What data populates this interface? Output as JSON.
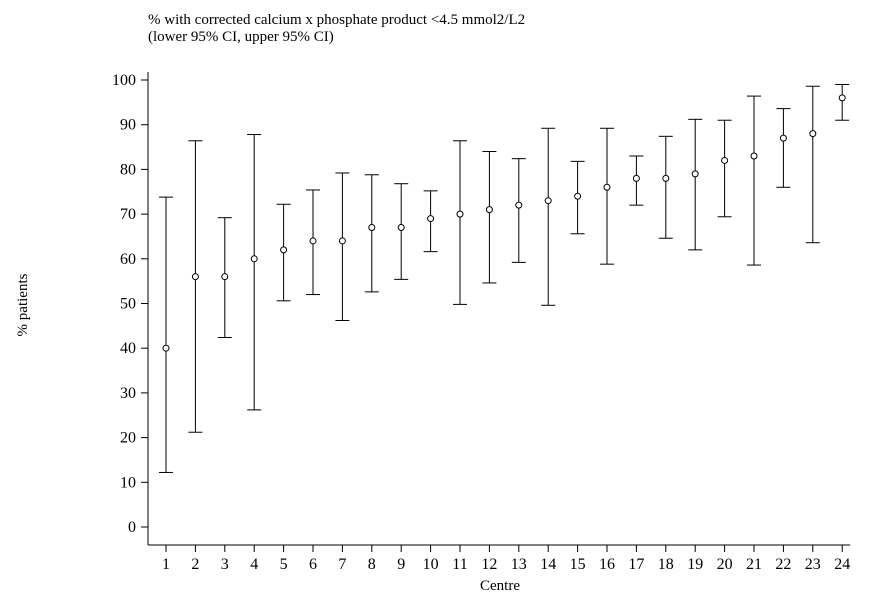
{
  "chart_data": {
    "type": "scatter",
    "title": "% with corrected calcium x phosphate product <4.5 mmol2/L2",
    "subtitle": "(lower 95% CI, upper 95% CI)",
    "xlabel": "Centre",
    "ylabel": "% patients",
    "ylim": [
      0,
      100
    ],
    "yticks": [
      0,
      10,
      20,
      30,
      40,
      50,
      60,
      70,
      80,
      90,
      100
    ],
    "categories": [
      "1",
      "2",
      "3",
      "4",
      "5",
      "6",
      "7",
      "8",
      "9",
      "10",
      "11",
      "12",
      "13",
      "14",
      "15",
      "16",
      "17",
      "18",
      "19",
      "20",
      "21",
      "22",
      "23",
      "24"
    ],
    "values": [
      40,
      56,
      56,
      60,
      62,
      64,
      64,
      67,
      67,
      69,
      70,
      71,
      72,
      73,
      74,
      76,
      78,
      78,
      79,
      82,
      83,
      87,
      88,
      96
    ],
    "lower_ci": [
      12.2,
      21.2,
      42.4,
      26.2,
      50.6,
      52,
      46.2,
      52.6,
      55.4,
      61.6,
      49.8,
      54.6,
      59.2,
      49.6,
      65.6,
      58.8,
      72,
      64.6,
      62,
      69.4,
      58.6,
      76,
      63.6,
      91
    ],
    "upper_ci": [
      73.8,
      86.4,
      69.2,
      87.8,
      72.2,
      75.4,
      79.2,
      78.8,
      76.8,
      75.2,
      86.4,
      84,
      82.4,
      89.2,
      81.8,
      89.2,
      83,
      87.4,
      91.2,
      91,
      96.4,
      93.6,
      98.6,
      99
    ],
    "grid": false,
    "marker": "open-circle",
    "color": "#000000"
  }
}
